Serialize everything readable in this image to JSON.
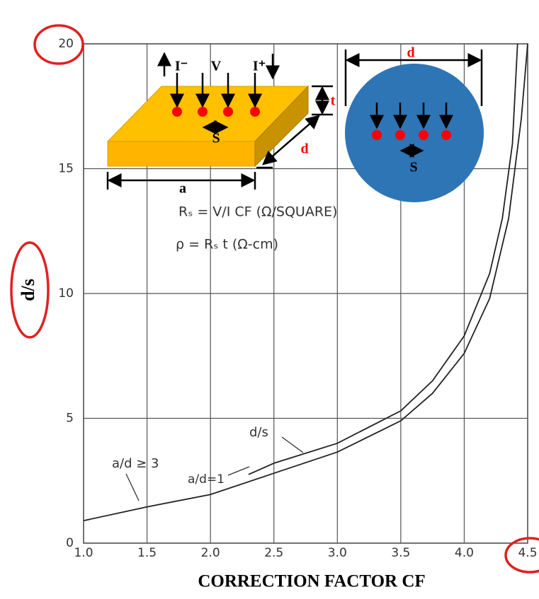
{
  "chart_data": {
    "type": "line",
    "x_label": "CORRECTION FACTOR CF",
    "y_label": "d/s",
    "xlim": [
      1.0,
      4.5
    ],
    "ylim": [
      0,
      20
    ],
    "xticks": [
      {
        "value": 1,
        "label": "1.0"
      },
      1.5,
      {
        "value": 2,
        "label": "2.0"
      },
      2.5,
      {
        "value": 3,
        "label": "3.0"
      },
      3.5,
      {
        "value": 4,
        "label": "4.0"
      },
      4.5
    ],
    "yticks": [
      0,
      5,
      10,
      15,
      20
    ],
    "grid": true,
    "series": [
      {
        "name": "a/d ≥ 3",
        "color": "#222222",
        "x": [
          1.0,
          1.5,
          2.0,
          2.5,
          3.0,
          3.5,
          3.75,
          4.0,
          4.2,
          4.35,
          4.45,
          4.5
        ],
        "values": [
          0.9,
          1.45,
          1.95,
          2.8,
          3.65,
          4.9,
          6.0,
          7.6,
          9.8,
          13,
          17,
          20
        ]
      },
      {
        "name": "d/s",
        "color": "#222222",
        "x": [
          2.3,
          2.5,
          3.0,
          3.5,
          3.75,
          4.0,
          4.2,
          4.3,
          4.38,
          4.42
        ],
        "values": [
          2.75,
          3.2,
          4.0,
          5.3,
          6.5,
          8.3,
          10.8,
          13,
          16,
          20
        ]
      }
    ],
    "annotations": [
      "a/d=1"
    ],
    "inset_labels": [
      "I⁻",
      "V",
      "I⁺",
      "t",
      "S",
      "d",
      "a",
      "d",
      "S"
    ],
    "formulas": [
      "Rₛ = V/I CF (Ω/SQUARE)",
      "ρ = Rₛ t  (Ω-cm)"
    ]
  }
}
